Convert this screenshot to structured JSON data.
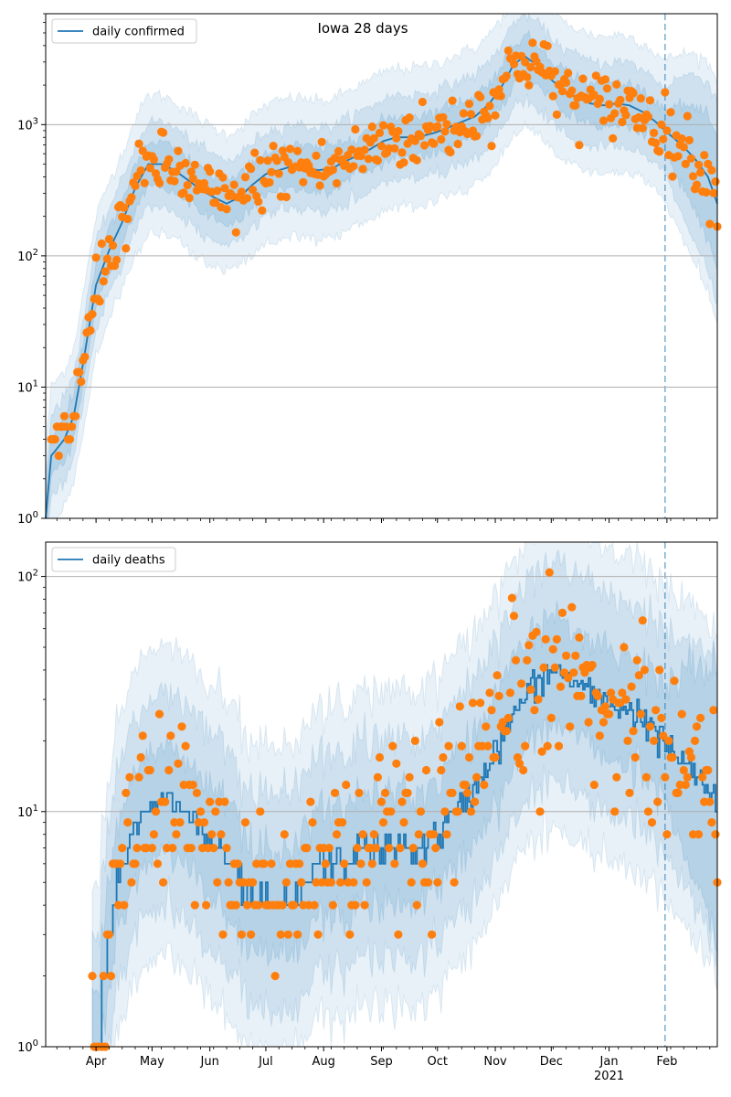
{
  "title": "Iowa 28 days",
  "colors": {
    "line": "#1f77b4",
    "points": "#ff7f0e",
    "band": "#1f77b4",
    "grid": "#b0b0b0",
    "vline": "#1f77b4"
  },
  "chart_data": [
    {
      "type": "line",
      "name": "confirmed",
      "title": "Iowa 28 days",
      "legend": "daily confirmed",
      "legend_position": "top-left",
      "yscale": "log",
      "ylim": [
        1,
        7000
      ],
      "yticks": [
        1,
        10,
        100,
        1000
      ],
      "ytick_labels": [
        "10^0",
        "10^1",
        "10^2",
        "10^3"
      ],
      "xlim": [
        "2020-03-05",
        "2021-02-28"
      ],
      "xticks": [
        "2020-04-01",
        "2020-05-01",
        "2020-06-01",
        "2020-07-01",
        "2020-08-01",
        "2020-09-01",
        "2020-10-01",
        "2020-11-01",
        "2020-12-01",
        "2021-01-01",
        "2021-02-01"
      ],
      "xtick_labels": [],
      "xlabel_extra": "",
      "grid": "y-major",
      "vline_date": "2021-01-31",
      "fit_anchors": [
        [
          "2020-03-05",
          1
        ],
        [
          "2020-03-08",
          3
        ],
        [
          "2020-03-15",
          4
        ],
        [
          "2020-03-20",
          6
        ],
        [
          "2020-03-25",
          15
        ],
        [
          "2020-04-01",
          60
        ],
        [
          "2020-04-08",
          110
        ],
        [
          "2020-04-15",
          180
        ],
        [
          "2020-04-22",
          330
        ],
        [
          "2020-04-29",
          500
        ],
        [
          "2020-05-06",
          500
        ],
        [
          "2020-05-13",
          450
        ],
        [
          "2020-05-20",
          380
        ],
        [
          "2020-05-27",
          320
        ],
        [
          "2020-06-03",
          280
        ],
        [
          "2020-06-10",
          250
        ],
        [
          "2020-06-17",
          280
        ],
        [
          "2020-06-24",
          350
        ],
        [
          "2020-07-01",
          420
        ],
        [
          "2020-07-08",
          450
        ],
        [
          "2020-07-15",
          480
        ],
        [
          "2020-07-22",
          470
        ],
        [
          "2020-07-29",
          450
        ],
        [
          "2020-08-05",
          460
        ],
        [
          "2020-08-12",
          520
        ],
        [
          "2020-08-19",
          580
        ],
        [
          "2020-08-26",
          650
        ],
        [
          "2020-09-02",
          750
        ],
        [
          "2020-09-09",
          800
        ],
        [
          "2020-09-16",
          800
        ],
        [
          "2020-09-23",
          820
        ],
        [
          "2020-09-30",
          870
        ],
        [
          "2020-10-07",
          950
        ],
        [
          "2020-10-14",
          1050
        ],
        [
          "2020-10-21",
          1150
        ],
        [
          "2020-10-28",
          1400
        ],
        [
          "2020-11-04",
          1900
        ],
        [
          "2020-11-11",
          2900
        ],
        [
          "2020-11-17",
          3300
        ],
        [
          "2020-11-24",
          2800
        ],
        [
          "2020-12-01",
          2200
        ],
        [
          "2020-12-08",
          1800
        ],
        [
          "2020-12-15",
          1600
        ],
        [
          "2020-12-22",
          1450
        ],
        [
          "2020-12-29",
          1400
        ],
        [
          "2021-01-05",
          1450
        ],
        [
          "2021-01-12",
          1400
        ],
        [
          "2021-01-19",
          1250
        ],
        [
          "2021-01-26",
          1050
        ],
        [
          "2021-02-02",
          850
        ],
        [
          "2021-02-09",
          700
        ],
        [
          "2021-02-16",
          550
        ],
        [
          "2021-02-23",
          400
        ],
        [
          "2021-02-28",
          250
        ]
      ],
      "band_inner": 1.45,
      "band_outer": 2.1,
      "band_outer_end": 6.0
    },
    {
      "type": "line",
      "name": "deaths",
      "title": "",
      "legend": "daily deaths",
      "legend_position": "top-left",
      "yscale": "log",
      "ylim": [
        1,
        140
      ],
      "yticks": [
        1,
        10,
        100
      ],
      "ytick_labels": [
        "10^0",
        "10^1",
        "10^2"
      ],
      "xlim": [
        "2020-03-05",
        "2021-02-28"
      ],
      "xticks": [
        "2020-04-01",
        "2020-05-01",
        "2020-06-01",
        "2020-07-01",
        "2020-08-01",
        "2020-09-01",
        "2020-10-01",
        "2020-11-01",
        "2020-12-01",
        "2021-01-01",
        "2021-02-01"
      ],
      "xtick_labels": [
        "Apr",
        "May",
        "Jun",
        "Jul",
        "Aug",
        "Sep",
        "Oct",
        "Nov",
        "Dec",
        "Jan",
        "Feb"
      ],
      "xlabel_extra": "2021",
      "grid": "y-major",
      "vline_date": "2021-01-31",
      "fit_anchors": [
        [
          "2020-03-30",
          1
        ],
        [
          "2020-04-05",
          2
        ],
        [
          "2020-04-12",
          5
        ],
        [
          "2020-04-20",
          8
        ],
        [
          "2020-04-28",
          10
        ],
        [
          "2020-05-05",
          11
        ],
        [
          "2020-05-12",
          11
        ],
        [
          "2020-05-20",
          10
        ],
        [
          "2020-05-28",
          8
        ],
        [
          "2020-06-04",
          7
        ],
        [
          "2020-06-11",
          6
        ],
        [
          "2020-06-18",
          5
        ],
        [
          "2020-06-25",
          4
        ],
        [
          "2020-07-01",
          4
        ],
        [
          "2020-07-08",
          4
        ],
        [
          "2020-07-15",
          4
        ],
        [
          "2020-07-22",
          5
        ],
        [
          "2020-07-29",
          6
        ],
        [
          "2020-08-05",
          6
        ],
        [
          "2020-08-12",
          6
        ],
        [
          "2020-08-19",
          7
        ],
        [
          "2020-08-26",
          7
        ],
        [
          "2020-09-02",
          7
        ],
        [
          "2020-09-09",
          7
        ],
        [
          "2020-09-16",
          7
        ],
        [
          "2020-09-23",
          7
        ],
        [
          "2020-09-30",
          8
        ],
        [
          "2020-10-07",
          9
        ],
        [
          "2020-10-14",
          11
        ],
        [
          "2020-10-21",
          13
        ],
        [
          "2020-10-28",
          16
        ],
        [
          "2020-11-04",
          20
        ],
        [
          "2020-11-11",
          26
        ],
        [
          "2020-11-18",
          32
        ],
        [
          "2020-11-25",
          37
        ],
        [
          "2020-12-02",
          40
        ],
        [
          "2020-12-09",
          38
        ],
        [
          "2020-12-16",
          34
        ],
        [
          "2020-12-23",
          31
        ],
        [
          "2020-12-30",
          29
        ],
        [
          "2021-01-06",
          28
        ],
        [
          "2021-01-13",
          27
        ],
        [
          "2021-01-20",
          25
        ],
        [
          "2021-01-27",
          21
        ],
        [
          "2021-02-03",
          18
        ],
        [
          "2021-02-10",
          16
        ],
        [
          "2021-02-17",
          14
        ],
        [
          "2021-02-24",
          12
        ],
        [
          "2021-02-28",
          10
        ]
      ],
      "band_inner": 1.7,
      "band_outer": 2.9,
      "band_outer_end": 4.0
    }
  ]
}
